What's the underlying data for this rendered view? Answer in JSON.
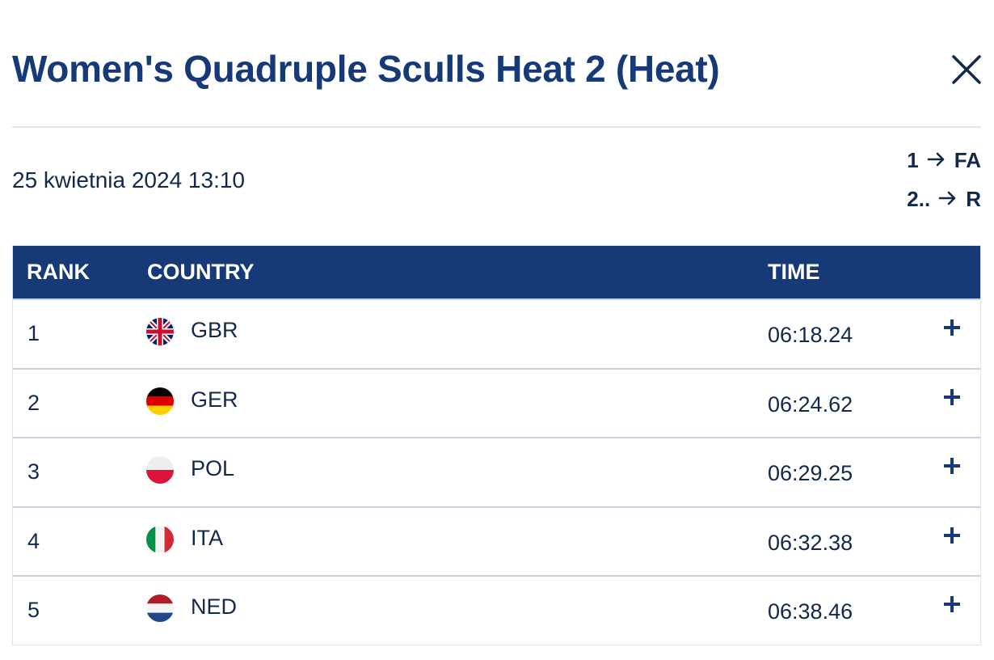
{
  "dialog": {
    "title": "Women's Quadruple Sculls Heat 2 (Heat)",
    "close_icon": "close-icon"
  },
  "race": {
    "date": "25 kwietnia 2024 13:10",
    "progression": [
      {
        "places": "1",
        "arrow_icon": "arrow-right-icon",
        "target": "FA"
      },
      {
        "places": "2..",
        "arrow_icon": "arrow-right-icon",
        "target": "R"
      }
    ]
  },
  "results": {
    "columns": {
      "rank": "RANK",
      "country": "COUNTRY",
      "time": "TIME"
    },
    "rows": [
      {
        "rank": "1",
        "country": "GBR",
        "flag_icon": "flag-gbr-icon",
        "time": "06:18.24",
        "expand_icon": "plus-icon"
      },
      {
        "rank": "2",
        "country": "GER",
        "flag_icon": "flag-ger-icon",
        "time": "06:24.62",
        "expand_icon": "plus-icon"
      },
      {
        "rank": "3",
        "country": "POL",
        "flag_icon": "flag-pol-icon",
        "time": "06:29.25",
        "expand_icon": "plus-icon"
      },
      {
        "rank": "4",
        "country": "ITA",
        "flag_icon": "flag-ita-icon",
        "time": "06:32.38",
        "expand_icon": "plus-icon"
      },
      {
        "rank": "5",
        "country": "NED",
        "flag_icon": "flag-ned-icon",
        "time": "06:38.46",
        "expand_icon": "plus-icon"
      }
    ]
  },
  "colors": {
    "primary": "#163a78",
    "text": "#13294b",
    "divider": "#e3e6ea",
    "row_border": "#c9d2e0"
  }
}
